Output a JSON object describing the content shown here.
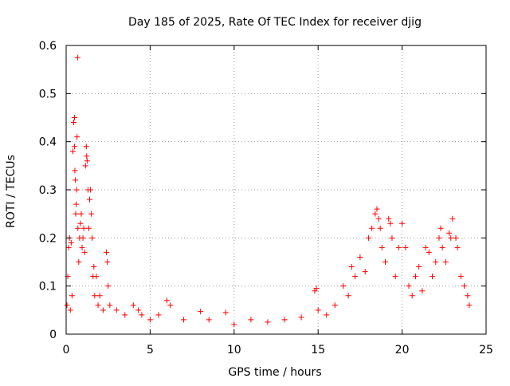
{
  "chart_data": {
    "type": "scatter",
    "title": "Day 185 of 2025, Rate Of TEC Index for receiver djig",
    "xlabel": "GPS time / hours",
    "ylabel": "ROTI / TECUs",
    "xlim": [
      0,
      25
    ],
    "ylim": [
      0,
      0.6
    ],
    "x_ticks": [
      "0",
      "5",
      "10",
      "15",
      "20",
      "25"
    ],
    "y_ticks": [
      "0",
      "0.1",
      "0.2",
      "0.3",
      "0.4",
      "0.5",
      "0.6"
    ],
    "grid": true,
    "marker": "+",
    "color": "#ff0000",
    "series": [
      {
        "name": "ROTI",
        "points": [
          [
            0.05,
            0.06
          ],
          [
            0.1,
            0.12
          ],
          [
            0.15,
            0.18
          ],
          [
            0.2,
            0.2
          ],
          [
            0.25,
            0.05
          ],
          [
            0.3,
            0.19
          ],
          [
            0.35,
            0.08
          ],
          [
            0.4,
            0.38
          ],
          [
            0.45,
            0.44
          ],
          [
            0.5,
            0.45
          ],
          [
            0.5,
            0.39
          ],
          [
            0.52,
            0.34
          ],
          [
            0.55,
            0.32
          ],
          [
            0.57,
            0.25
          ],
          [
            0.6,
            0.27
          ],
          [
            0.62,
            0.3
          ],
          [
            0.65,
            0.41
          ],
          [
            0.68,
            0.575
          ],
          [
            0.7,
            0.22
          ],
          [
            0.75,
            0.15
          ],
          [
            0.8,
            0.2
          ],
          [
            0.85,
            0.23
          ],
          [
            0.9,
            0.25
          ],
          [
            0.95,
            0.18
          ],
          [
            1.0,
            0.2
          ],
          [
            1.05,
            0.22
          ],
          [
            1.1,
            0.17
          ],
          [
            1.15,
            0.35
          ],
          [
            1.2,
            0.39
          ],
          [
            1.22,
            0.37
          ],
          [
            1.25,
            0.36
          ],
          [
            1.3,
            0.3
          ],
          [
            1.35,
            0.22
          ],
          [
            1.4,
            0.28
          ],
          [
            1.45,
            0.3
          ],
          [
            1.5,
            0.25
          ],
          [
            1.55,
            0.2
          ],
          [
            1.6,
            0.12
          ],
          [
            1.65,
            0.14
          ],
          [
            1.7,
            0.08
          ],
          [
            1.8,
            0.12
          ],
          [
            1.9,
            0.06
          ],
          [
            2.0,
            0.08
          ],
          [
            2.2,
            0.05
          ],
          [
            2.4,
            0.17
          ],
          [
            2.45,
            0.15
          ],
          [
            2.5,
            0.1
          ],
          [
            2.6,
            0.06
          ],
          [
            3.0,
            0.05
          ],
          [
            3.5,
            0.04
          ],
          [
            4.0,
            0.06
          ],
          [
            4.3,
            0.05
          ],
          [
            4.5,
            0.04
          ],
          [
            5.0,
            0.03
          ],
          [
            5.5,
            0.04
          ],
          [
            6.0,
            0.07
          ],
          [
            6.2,
            0.06
          ],
          [
            7.0,
            0.03
          ],
          [
            8.0,
            0.047
          ],
          [
            8.5,
            0.03
          ],
          [
            9.5,
            0.045
          ],
          [
            10.0,
            0.02
          ],
          [
            11.0,
            0.03
          ],
          [
            12.0,
            0.025
          ],
          [
            13.0,
            0.03
          ],
          [
            14.0,
            0.035
          ],
          [
            14.8,
            0.09
          ],
          [
            14.9,
            0.095
          ],
          [
            15.0,
            0.05
          ],
          [
            15.5,
            0.04
          ],
          [
            16.0,
            0.06
          ],
          [
            16.5,
            0.1
          ],
          [
            16.8,
            0.08
          ],
          [
            17.0,
            0.14
          ],
          [
            17.2,
            0.12
          ],
          [
            17.5,
            0.16
          ],
          [
            17.8,
            0.13
          ],
          [
            18.0,
            0.2
          ],
          [
            18.2,
            0.22
          ],
          [
            18.4,
            0.25
          ],
          [
            18.5,
            0.26
          ],
          [
            18.6,
            0.24
          ],
          [
            18.7,
            0.22
          ],
          [
            18.8,
            0.18
          ],
          [
            19.0,
            0.15
          ],
          [
            19.2,
            0.24
          ],
          [
            19.3,
            0.23
          ],
          [
            19.4,
            0.2
          ],
          [
            19.6,
            0.12
          ],
          [
            19.8,
            0.18
          ],
          [
            20.0,
            0.23
          ],
          [
            20.2,
            0.18
          ],
          [
            20.4,
            0.1
          ],
          [
            20.6,
            0.08
          ],
          [
            20.8,
            0.12
          ],
          [
            21.0,
            0.14
          ],
          [
            21.2,
            0.09
          ],
          [
            21.4,
            0.18
          ],
          [
            21.6,
            0.17
          ],
          [
            21.8,
            0.12
          ],
          [
            22.0,
            0.15
          ],
          [
            22.2,
            0.2
          ],
          [
            22.3,
            0.22
          ],
          [
            22.4,
            0.18
          ],
          [
            22.6,
            0.15
          ],
          [
            22.8,
            0.21
          ],
          [
            22.9,
            0.2
          ],
          [
            23.0,
            0.24
          ],
          [
            23.2,
            0.2
          ],
          [
            23.3,
            0.18
          ],
          [
            23.5,
            0.12
          ],
          [
            23.7,
            0.1
          ],
          [
            23.9,
            0.08
          ],
          [
            24.0,
            0.06
          ]
        ]
      }
    ]
  }
}
